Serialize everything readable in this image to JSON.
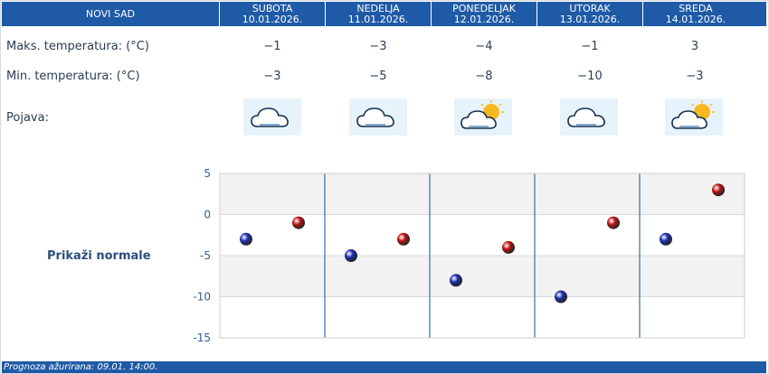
{
  "header": {
    "city": "NOVI SAD",
    "days": [
      {
        "name": "SUBOTA",
        "date": "10.01.2026."
      },
      {
        "name": "NEDELJA",
        "date": "11.01.2026."
      },
      {
        "name": "PONEDELJAK",
        "date": "12.01.2026."
      },
      {
        "name": "UTORAK",
        "date": "13.01.2026."
      },
      {
        "name": "SREDA",
        "date": "14.01.2026."
      }
    ]
  },
  "rows": {
    "max_label": "Maks. temperatura: (°C)",
    "min_label": "Min. temperatura: (°C)",
    "phenomenon_label": "Pojava:",
    "max_values": [
      "−1",
      "−3",
      "−4",
      "−1",
      "3"
    ],
    "min_values": [
      "−3",
      "−5",
      "−8",
      "−10",
      "−3"
    ],
    "icons": [
      "cloudy-icon",
      "cloudy-icon",
      "partly-sunny-icon",
      "cloudy-icon",
      "partly-sunny-icon"
    ]
  },
  "normals_label": "Prikaži normale",
  "chart_data": {
    "type": "scatter",
    "categories": [
      "SUBOTA",
      "NEDELJA",
      "PONEDELJAK",
      "UTORAK",
      "SREDA"
    ],
    "series": [
      {
        "values": [
          -3,
          -5,
          -8,
          -10,
          -3
        ],
        "color": "#1a2fb5"
      },
      {
        "values": [
          -1,
          -3,
          -4,
          -1,
          3
        ],
        "color": "#c41212"
      }
    ],
    "y_ticks": [
      "5",
      "0",
      "-5",
      "-10",
      "-15"
    ],
    "ylim": [
      -15,
      5
    ],
    "grid": true
  },
  "footer": {
    "label": "Prognoza ažurirana:  09.01. 14:00."
  }
}
